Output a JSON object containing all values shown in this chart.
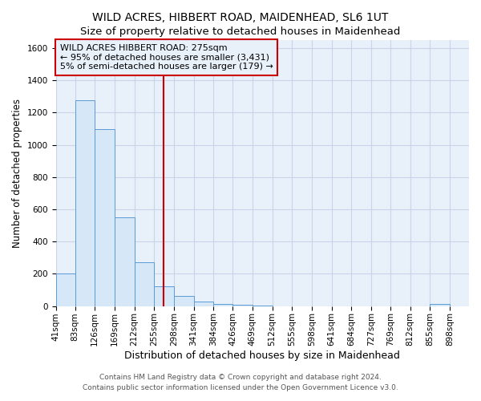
{
  "title": "WILD ACRES, HIBBERT ROAD, MAIDENHEAD, SL6 1UT",
  "subtitle": "Size of property relative to detached houses in Maidenhead",
  "xlabel": "Distribution of detached houses by size in Maidenhead",
  "ylabel": "Number of detached properties",
  "bar_edges": [
    41,
    83,
    126,
    169,
    212,
    255,
    298,
    341,
    384,
    426,
    469,
    512,
    555,
    598,
    641,
    684,
    727,
    769,
    812,
    855,
    898
  ],
  "bar_heights": [
    200,
    1275,
    1100,
    550,
    270,
    125,
    65,
    30,
    15,
    10,
    5,
    0,
    0,
    0,
    0,
    0,
    0,
    0,
    0,
    15,
    0
  ],
  "bar_fill": "#d6e8f7",
  "bar_edge": "#5b9bd5",
  "vline_x": 275,
  "vline_color": "#cc0000",
  "annotation_title": "WILD ACRES HIBBERT ROAD: 275sqm",
  "annotation_line1": "← 95% of detached houses are smaller (3,431)",
  "annotation_line2": "5% of semi-detached houses are larger (179) →",
  "annotation_box_edge": "#cc0000",
  "ylim": [
    0,
    1650
  ],
  "yticks": [
    0,
    200,
    400,
    600,
    800,
    1000,
    1200,
    1400,
    1600
  ],
  "fig_bg": "#ffffff",
  "plot_bg": "#e8f0fa",
  "footer1": "Contains HM Land Registry data © Crown copyright and database right 2024.",
  "footer2": "Contains public sector information licensed under the Open Government Licence v3.0.",
  "title_fontsize": 10,
  "subtitle_fontsize": 9.5,
  "xlabel_fontsize": 9,
  "ylabel_fontsize": 8.5,
  "tick_fontsize": 7.5,
  "annotation_fontsize": 8,
  "footer_fontsize": 6.5,
  "grid_color": "#c8d4e8",
  "xlim_left": 41,
  "xlim_right": 940
}
